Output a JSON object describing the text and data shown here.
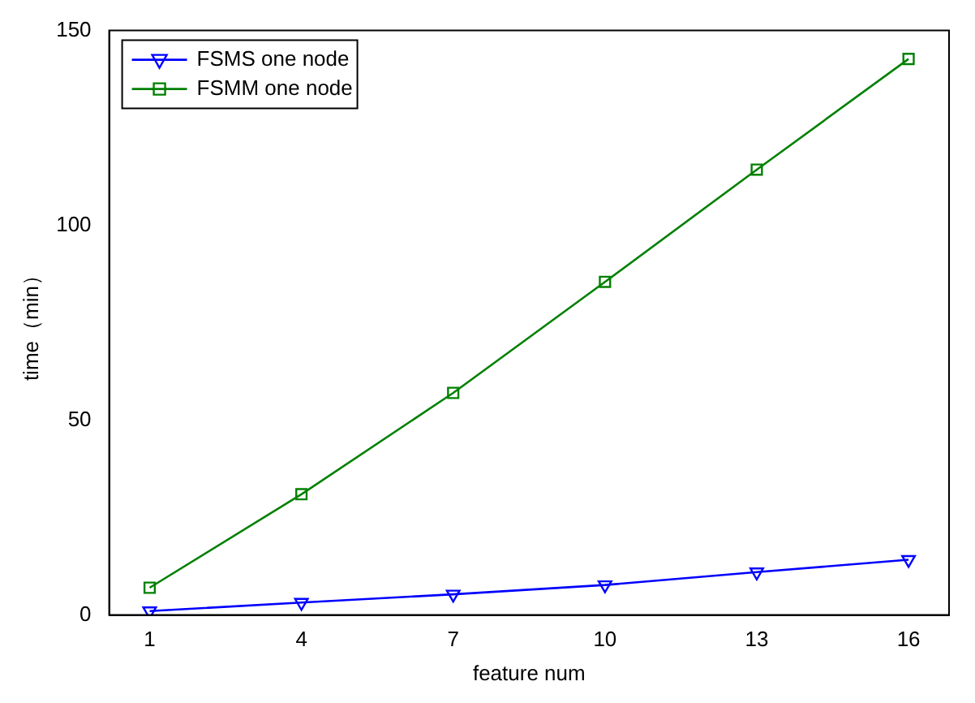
{
  "chart_data": {
    "type": "line",
    "xlabel": "feature num",
    "ylabel": "time（min）",
    "x": [
      1,
      4,
      7,
      10,
      13,
      16
    ],
    "series": [
      {
        "name": "FSMS one node",
        "color": "#0000ff",
        "marker": "triangle",
        "values": [
          1,
          3.2,
          5.3,
          7.7,
          11,
          14.2
        ]
      },
      {
        "name": "FSMM one node",
        "color": "#008000",
        "marker": "square",
        "values": [
          7,
          31,
          57,
          85.5,
          114.3,
          142.7
        ]
      }
    ],
    "xlim": [
      0.2,
      16.8
    ],
    "xticks": [
      1,
      4,
      7,
      10,
      13,
      16
    ],
    "ylim": [
      0,
      150
    ],
    "yticks": [
      0,
      50,
      100,
      150
    ],
    "grid": false,
    "legend": "top left",
    "line_style": "solid"
  }
}
